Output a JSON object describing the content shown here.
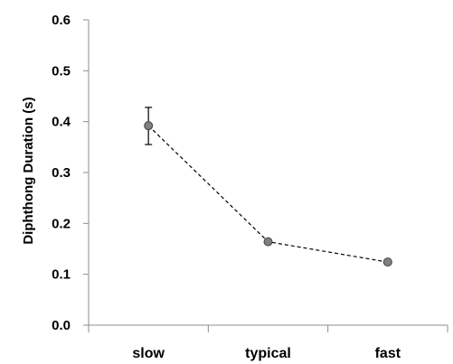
{
  "chart_data": {
    "type": "line",
    "categories": [
      "slow",
      "typical",
      "fast"
    ],
    "series": [
      {
        "values": [
          0.392,
          0.164,
          0.124
        ],
        "error_low": [
          0.355,
          null,
          null
        ],
        "error_high": [
          0.428,
          null,
          null
        ]
      }
    ],
    "xlabel": "",
    "ylabel": "Diphthong Duration (s)",
    "ylim": [
      0.0,
      0.6
    ],
    "yticks": [
      "0.0",
      "0.1",
      "0.2",
      "0.3",
      "0.4",
      "0.5",
      "0.6"
    ],
    "grid": false,
    "line_style": "dashed",
    "colors": {
      "marker_fill": "#808080",
      "marker_stroke": "#404040",
      "line": "#000000",
      "axis": "#8c8c8c"
    }
  }
}
